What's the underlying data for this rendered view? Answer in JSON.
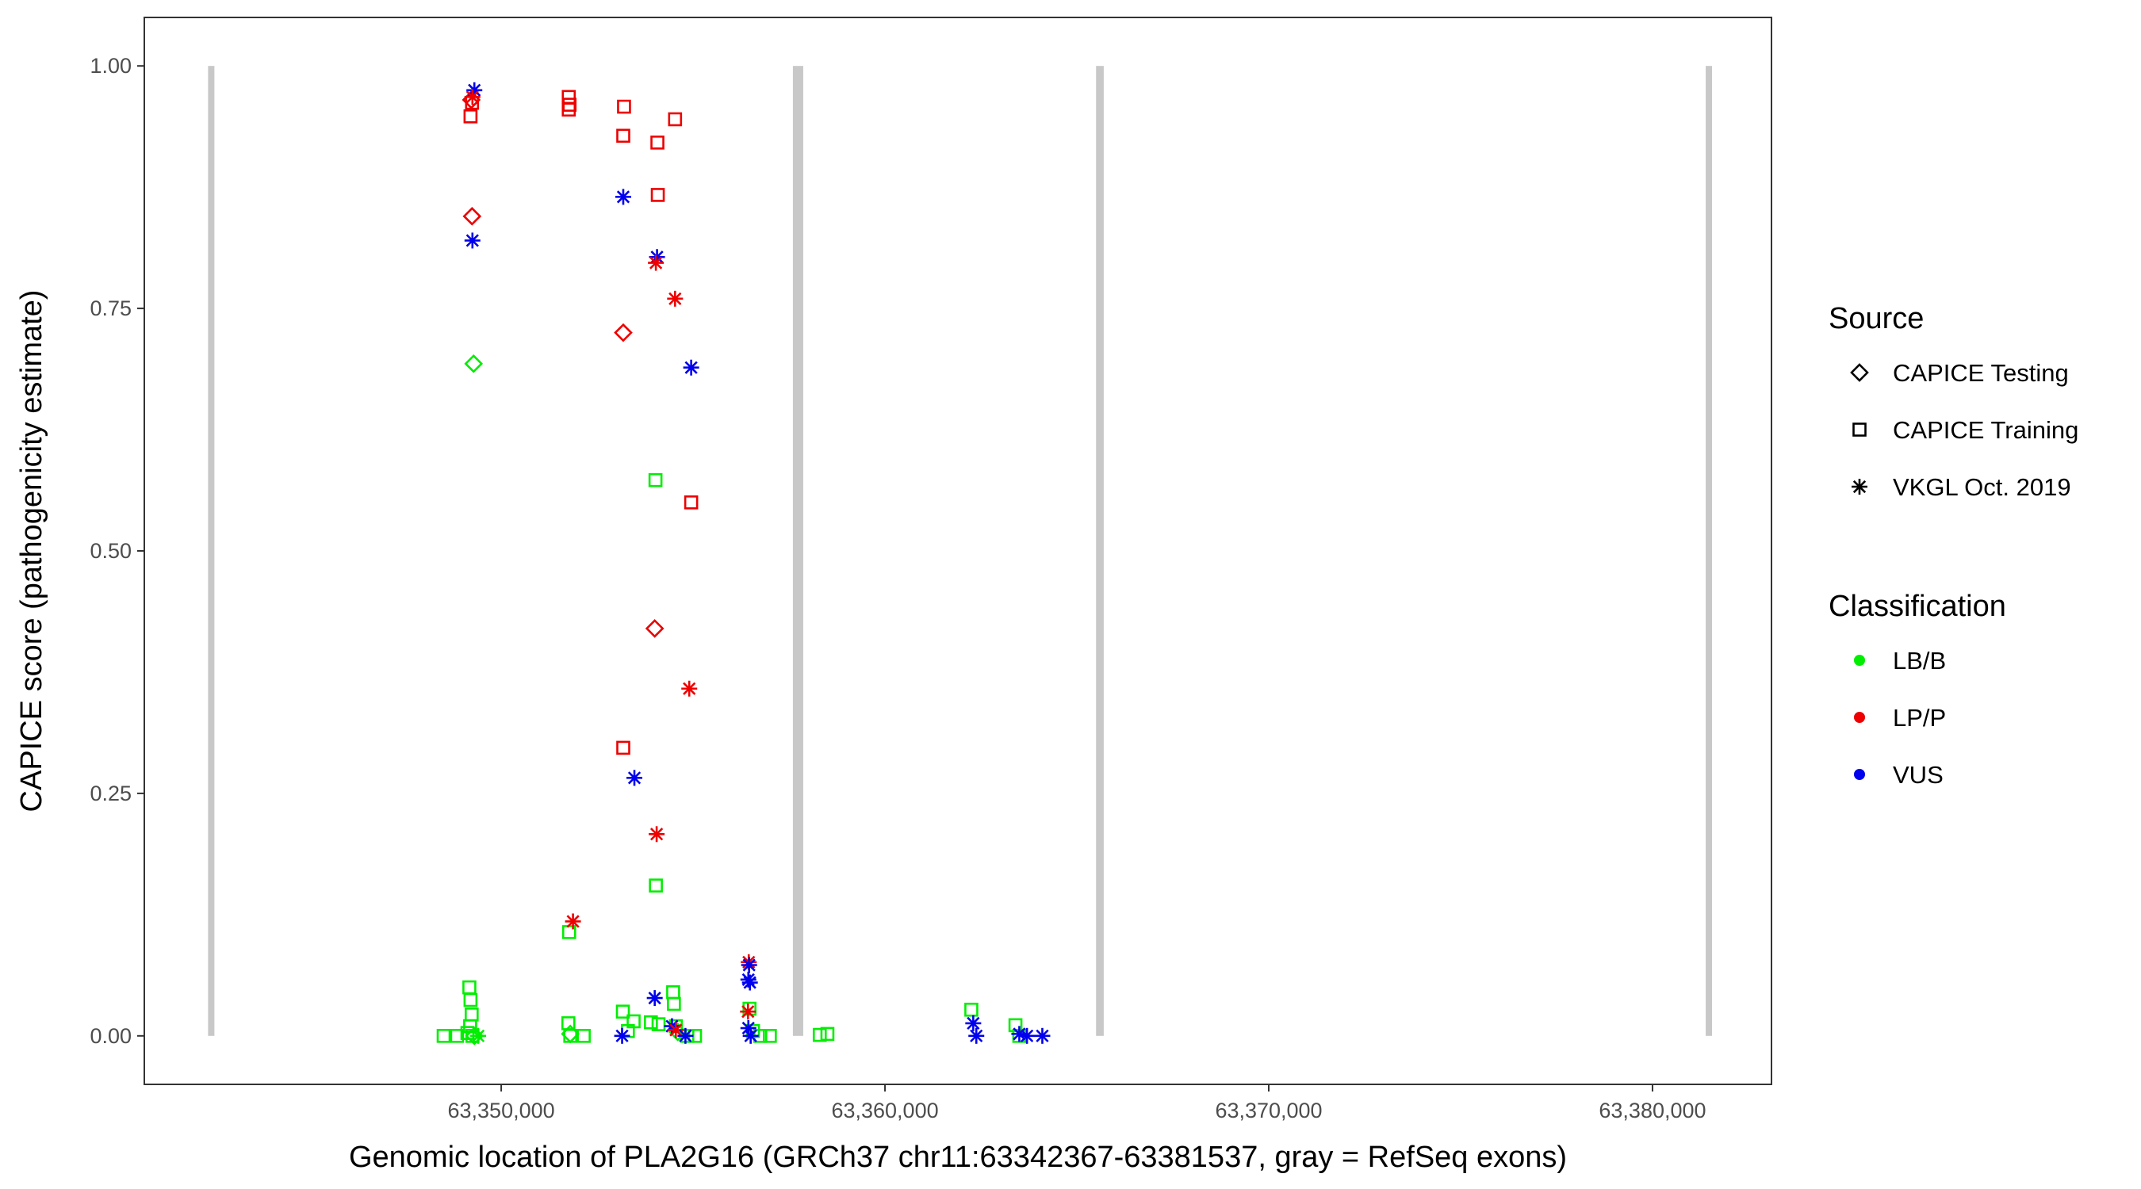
{
  "chart_data": {
    "type": "scatter",
    "xlabel": "Genomic location of PLA2G16 (GRCh37 chr11:63342367-63381537, gray = RefSeq exons)",
    "ylabel": "CAPICE score (pathogenicity estimate)",
    "xlim": [
      63340700,
      63383100
    ],
    "ylim": [
      -0.05,
      1.05
    ],
    "x_ticks": [
      63350000,
      63360000,
      63370000,
      63380000
    ],
    "x_tick_labels": [
      "63,350,000",
      "63,360,000",
      "63,370,000",
      "63,380,000"
    ],
    "y_ticks": [
      0.0,
      0.25,
      0.5,
      0.75,
      1.0
    ],
    "y_tick_labels": [
      "0.00",
      "0.25",
      "0.50",
      "0.75",
      "1.00"
    ],
    "grid": false,
    "exons": [
      {
        "start": 63342367,
        "end": 63342520
      },
      {
        "start": 63357600,
        "end": 63357870
      },
      {
        "start": 63365500,
        "end": 63365700
      },
      {
        "start": 63381400,
        "end": 63381537
      }
    ],
    "colors": {
      "LB/B": "#00ee00",
      "LP/P": "#ee0000",
      "VUS": "#0000ee",
      "exon": "#c8c8c8"
    },
    "legend": {
      "placement": "right",
      "source_title": "Source",
      "source_items": [
        {
          "label": "CAPICE Testing",
          "shape": "diamond"
        },
        {
          "label": "CAPICE Training",
          "shape": "square"
        },
        {
          "label": "VKGL Oct. 2019",
          "shape": "star"
        }
      ],
      "class_title": "Classification",
      "class_items": [
        {
          "label": "LB/B",
          "color": "#00ee00"
        },
        {
          "label": "LP/P",
          "color": "#ee0000"
        },
        {
          "label": "VUS",
          "color": "#0000ee"
        }
      ]
    },
    "series": [
      {
        "name": "CAPICE Testing",
        "shape": "diamond",
        "points": [
          {
            "x": 63349240,
            "y": 0.845,
            "c": "LP/P"
          },
          {
            "x": 63349280,
            "y": 0.693,
            "c": "LB/B"
          },
          {
            "x": 63349220,
            "y": 0.965,
            "c": "LP/P"
          },
          {
            "x": 63353180,
            "y": 0.725,
            "c": "LP/P"
          },
          {
            "x": 63354000,
            "y": 0.42,
            "c": "LP/P"
          },
          {
            "x": 63349300,
            "y": 0.0,
            "c": "LB/B"
          },
          {
            "x": 63351800,
            "y": 0.002,
            "c": "LB/B"
          },
          {
            "x": 63354600,
            "y": 0.004,
            "c": "LB/B"
          }
        ]
      },
      {
        "name": "CAPICE Training",
        "shape": "square",
        "points": [
          {
            "x": 63349200,
            "y": 0.948,
            "c": "LP/P"
          },
          {
            "x": 63349240,
            "y": 0.962,
            "c": "LP/P"
          },
          {
            "x": 63351760,
            "y": 0.968,
            "c": "LP/P"
          },
          {
            "x": 63351760,
            "y": 0.955,
            "c": "LP/P"
          },
          {
            "x": 63351780,
            "y": 0.96,
            "c": "LP/P"
          },
          {
            "x": 63353200,
            "y": 0.958,
            "c": "LP/P"
          },
          {
            "x": 63353180,
            "y": 0.928,
            "c": "LP/P"
          },
          {
            "x": 63354070,
            "y": 0.921,
            "c": "LP/P"
          },
          {
            "x": 63354530,
            "y": 0.945,
            "c": "LP/P"
          },
          {
            "x": 63354080,
            "y": 0.867,
            "c": "LP/P"
          },
          {
            "x": 63354950,
            "y": 0.55,
            "c": "LP/P"
          },
          {
            "x": 63353180,
            "y": 0.297,
            "c": "LP/P"
          },
          {
            "x": 63354020,
            "y": 0.573,
            "c": "LB/B"
          },
          {
            "x": 63354030,
            "y": 0.155,
            "c": "LB/B"
          },
          {
            "x": 63351770,
            "y": 0.107,
            "c": "LB/B"
          },
          {
            "x": 63349170,
            "y": 0.05,
            "c": "LB/B"
          },
          {
            "x": 63349200,
            "y": 0.037,
            "c": "LB/B"
          },
          {
            "x": 63349230,
            "y": 0.022,
            "c": "LB/B"
          },
          {
            "x": 63349190,
            "y": 0.01,
            "c": "LB/B"
          },
          {
            "x": 63348500,
            "y": 0.0,
            "c": "LB/B"
          },
          {
            "x": 63348850,
            "y": 0.0,
            "c": "LB/B"
          },
          {
            "x": 63349120,
            "y": 0.003,
            "c": "LB/B"
          },
          {
            "x": 63349250,
            "y": 0.0,
            "c": "LB/B"
          },
          {
            "x": 63351750,
            "y": 0.013,
            "c": "LB/B"
          },
          {
            "x": 63351800,
            "y": 0.0,
            "c": "LB/B"
          },
          {
            "x": 63352150,
            "y": 0.0,
            "c": "LB/B"
          },
          {
            "x": 63353170,
            "y": 0.025,
            "c": "LB/B"
          },
          {
            "x": 63353450,
            "y": 0.015,
            "c": "LB/B"
          },
          {
            "x": 63353300,
            "y": 0.005,
            "c": "LB/B"
          },
          {
            "x": 63353900,
            "y": 0.014,
            "c": "LB/B"
          },
          {
            "x": 63354100,
            "y": 0.012,
            "c": "LB/B"
          },
          {
            "x": 63354480,
            "y": 0.045,
            "c": "LB/B"
          },
          {
            "x": 63354500,
            "y": 0.033,
            "c": "LB/B"
          },
          {
            "x": 63354550,
            "y": 0.01,
            "c": "LB/B"
          },
          {
            "x": 63354850,
            "y": 0.0,
            "c": "LB/B"
          },
          {
            "x": 63355050,
            "y": 0.0,
            "c": "LB/B"
          },
          {
            "x": 63356470,
            "y": 0.028,
            "c": "LB/B"
          },
          {
            "x": 63356560,
            "y": 0.005,
            "c": "LB/B"
          },
          {
            "x": 63356750,
            "y": 0.0,
            "c": "LB/B"
          },
          {
            "x": 63357000,
            "y": 0.0,
            "c": "LB/B"
          },
          {
            "x": 63358300,
            "y": 0.001,
            "c": "LB/B"
          },
          {
            "x": 63358500,
            "y": 0.002,
            "c": "LB/B"
          },
          {
            "x": 63362250,
            "y": 0.027,
            "c": "LB/B"
          },
          {
            "x": 63363400,
            "y": 0.011,
            "c": "LB/B"
          },
          {
            "x": 63363500,
            "y": 0.0,
            "c": "LB/B"
          }
        ]
      },
      {
        "name": "VKGL Oct. 2019",
        "shape": "star",
        "points": [
          {
            "x": 63349300,
            "y": 0.975,
            "c": "VUS"
          },
          {
            "x": 63349250,
            "y": 0.968,
            "c": "LP/P"
          },
          {
            "x": 63349250,
            "y": 0.82,
            "c": "VUS"
          },
          {
            "x": 63353180,
            "y": 0.865,
            "c": "VUS"
          },
          {
            "x": 63354060,
            "y": 0.803,
            "c": "VUS"
          },
          {
            "x": 63354030,
            "y": 0.797,
            "c": "LP/P"
          },
          {
            "x": 63354530,
            "y": 0.76,
            "c": "LP/P"
          },
          {
            "x": 63354950,
            "y": 0.689,
            "c": "VUS"
          },
          {
            "x": 63354900,
            "y": 0.358,
            "c": "LP/P"
          },
          {
            "x": 63353470,
            "y": 0.266,
            "c": "VUS"
          },
          {
            "x": 63354050,
            "y": 0.208,
            "c": "LP/P"
          },
          {
            "x": 63351870,
            "y": 0.118,
            "c": "LP/P"
          },
          {
            "x": 63356450,
            "y": 0.076,
            "c": "LP/P"
          },
          {
            "x": 63356460,
            "y": 0.073,
            "c": "VUS"
          },
          {
            "x": 63356440,
            "y": 0.058,
            "c": "VUS"
          },
          {
            "x": 63356480,
            "y": 0.055,
            "c": "VUS"
          },
          {
            "x": 63356430,
            "y": 0.025,
            "c": "LP/P"
          },
          {
            "x": 63354000,
            "y": 0.039,
            "c": "VUS"
          },
          {
            "x": 63356440,
            "y": 0.008,
            "c": "VUS"
          },
          {
            "x": 63354450,
            "y": 0.01,
            "c": "VUS"
          },
          {
            "x": 63354550,
            "y": 0.006,
            "c": "LP/P"
          },
          {
            "x": 63354800,
            "y": 0.0,
            "c": "VUS"
          },
          {
            "x": 63353150,
            "y": 0.0,
            "c": "VUS"
          },
          {
            "x": 63356500,
            "y": 0.0,
            "c": "VUS"
          },
          {
            "x": 63349400,
            "y": 0.0,
            "c": "LB/B"
          },
          {
            "x": 63362300,
            "y": 0.013,
            "c": "VUS"
          },
          {
            "x": 63362380,
            "y": 0.0,
            "c": "VUS"
          },
          {
            "x": 63363500,
            "y": 0.002,
            "c": "VUS"
          },
          {
            "x": 63363700,
            "y": 0.0,
            "c": "VUS"
          },
          {
            "x": 63364100,
            "y": 0.0,
            "c": "VUS"
          }
        ]
      }
    ]
  }
}
